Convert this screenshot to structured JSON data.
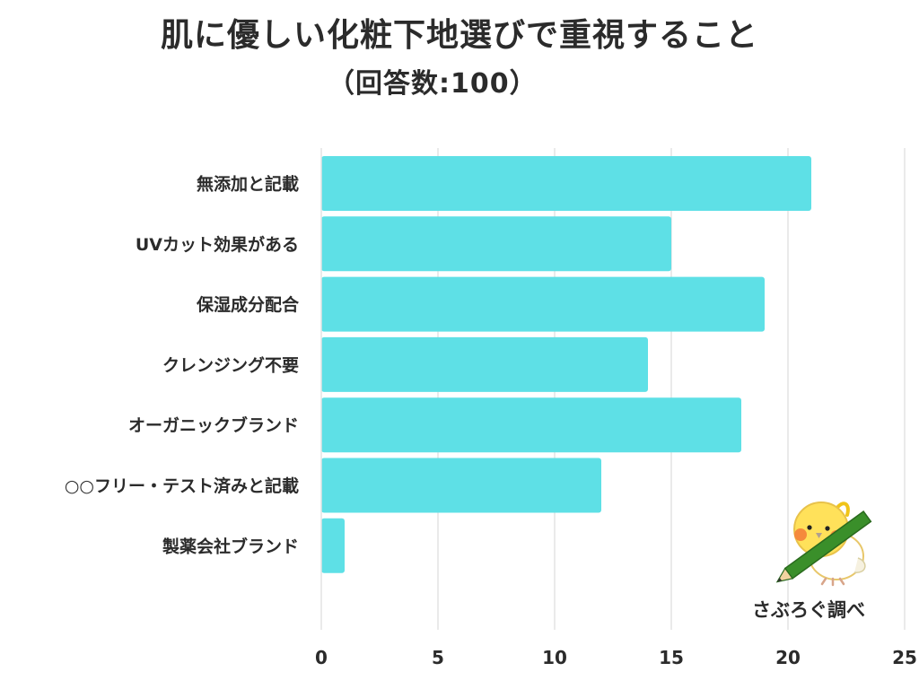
{
  "title": "肌に優しい化粧下地選びで重視すること",
  "subtitle": "（回答数:100）",
  "watermark": {
    "caption": "さぶろぐ調べ",
    "icon": "bird-with-pencil-icon"
  },
  "colors": {
    "bar": "#5ee0e6",
    "grid": "#e3e3e3",
    "text": "#2b2b2b"
  },
  "chart_data": {
    "type": "bar",
    "orientation": "horizontal",
    "categories": [
      "無添加と記載",
      "UVカット効果がある",
      "保湿成分配合",
      "クレンジング不要",
      "オーガニックブランド",
      "○○フリー・テスト済みと記載",
      "製薬会社ブランド"
    ],
    "values": [
      21,
      15,
      19,
      14,
      18,
      12,
      1
    ],
    "xlim": [
      0,
      25
    ],
    "xticks": [
      0,
      5,
      10,
      15,
      20,
      25
    ],
    "grid": true,
    "legend": "none"
  }
}
